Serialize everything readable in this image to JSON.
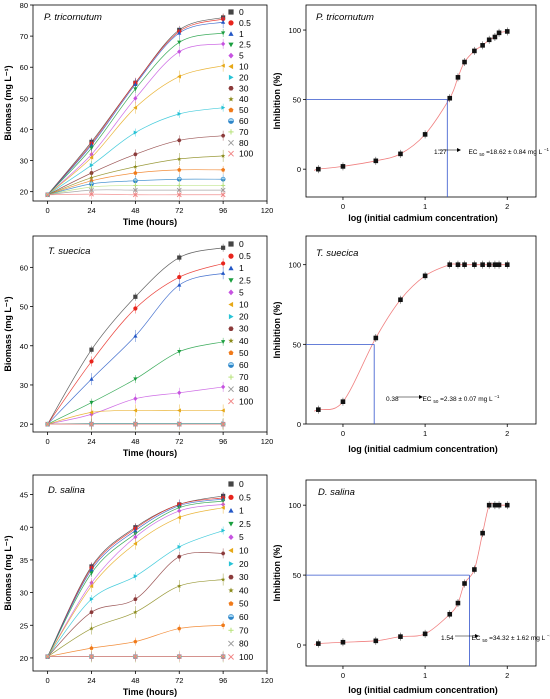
{
  "chart_data": [
    {
      "type": "line",
      "title": "P. tricornutum",
      "xlabel": "Time (hours)",
      "ylabel": "Biomass (mg L⁻¹)",
      "x": [
        0,
        24,
        48,
        72,
        96
      ],
      "xticks": [
        "0",
        "24",
        "48",
        "72",
        "96",
        "120"
      ],
      "xlim": [
        -8,
        120
      ],
      "ylim": [
        17,
        80
      ],
      "yticks": [
        20,
        30,
        40,
        50,
        60,
        70,
        80
      ],
      "legend_position": "right",
      "series": [
        {
          "name": "0",
          "color": "#444444",
          "marker": "square",
          "values": [
            19,
            36,
            55,
            72,
            76
          ]
        },
        {
          "name": "0.5",
          "color": "#e8241c",
          "marker": "circle",
          "values": [
            19,
            35.5,
            55,
            71.5,
            75.5
          ]
        },
        {
          "name": "1",
          "color": "#2357c6",
          "marker": "triangle-up",
          "values": [
            19,
            35,
            54.5,
            71,
            74.5
          ]
        },
        {
          "name": "2.5",
          "color": "#1a9e3f",
          "marker": "triangle-down",
          "values": [
            19,
            34,
            53,
            68,
            71
          ]
        },
        {
          "name": "5",
          "color": "#c653e0",
          "marker": "diamond",
          "values": [
            19,
            32,
            50,
            65,
            67.5
          ]
        },
        {
          "name": "10",
          "color": "#e6a817",
          "marker": "triangle-left",
          "values": [
            19,
            31,
            47,
            57,
            60.5
          ]
        },
        {
          "name": "20",
          "color": "#27c3d6",
          "marker": "triangle-right",
          "values": [
            19,
            28.5,
            39,
            45,
            47
          ]
        },
        {
          "name": "30",
          "color": "#8b3a3a",
          "marker": "hexagon",
          "values": [
            19,
            26,
            32,
            36.5,
            38
          ]
        },
        {
          "name": "40",
          "color": "#8a8a1a",
          "marker": "star",
          "values": [
            19,
            24.5,
            28,
            30.5,
            31.5
          ]
        },
        {
          "name": "50",
          "color": "#f07a1a",
          "marker": "pentagon",
          "values": [
            19,
            23.5,
            26,
            27,
            27
          ]
        },
        {
          "name": "60",
          "color": "#2f86c9",
          "marker": "half-circle",
          "values": [
            19,
            22.5,
            23.5,
            24,
            24
          ]
        },
        {
          "name": "70",
          "color": "#b7e27a",
          "marker": "plus",
          "values": [
            19,
            21.5,
            22,
            22,
            22
          ]
        },
        {
          "name": "80",
          "color": "#999999",
          "marker": "cross",
          "values": [
            19,
            20.5,
            20.5,
            20.5,
            20.5
          ]
        },
        {
          "name": "100",
          "color": "#f08080",
          "marker": "cross",
          "values": [
            19,
            19.2,
            19,
            19,
            19
          ]
        }
      ]
    },
    {
      "type": "scatter",
      "title": "P. tricornutum",
      "xlabel": "log (initial cadmium concentration)",
      "ylabel": "Inhibition (%)",
      "xlim": [
        -0.45,
        2.35
      ],
      "xticks": [
        0,
        1,
        2
      ],
      "ylim": [
        -20,
        118
      ],
      "yticks": [
        0,
        50,
        100
      ],
      "x": [
        -0.3,
        0,
        0.4,
        0.7,
        1.0,
        1.3,
        1.4,
        1.48,
        1.6,
        1.7,
        1.78,
        1.85,
        1.9,
        2.0
      ],
      "values": [
        0,
        2,
        6,
        11,
        25,
        51,
        66,
        77,
        85,
        89,
        93,
        95,
        98,
        99
      ],
      "ec50_log": 1.27,
      "annotation": [
        "1.27",
        "EC",
        "50",
        "=18.62 ± 0.84 mg L",
        "−1"
      ]
    },
    {
      "type": "line",
      "title": "T. suecica",
      "xlabel": "Time (hours)",
      "ylabel": "Biomass (mg L⁻¹)",
      "x": [
        0,
        24,
        48,
        72,
        96
      ],
      "xticks": [
        "0",
        "24",
        "48",
        "72",
        "96",
        "120"
      ],
      "xlim": [
        -8,
        120
      ],
      "ylim": [
        18,
        68
      ],
      "yticks": [
        20,
        30,
        40,
        50,
        60
      ],
      "legend_position": "right",
      "series": [
        {
          "name": "0",
          "color": "#444444",
          "marker": "square",
          "values": [
            20,
            39,
            52.5,
            62.5,
            65
          ]
        },
        {
          "name": "0.5",
          "color": "#e8241c",
          "marker": "circle",
          "values": [
            20,
            36,
            49.5,
            57.5,
            61
          ]
        },
        {
          "name": "1",
          "color": "#2357c6",
          "marker": "triangle-up",
          "values": [
            20,
            31.5,
            42.5,
            55.5,
            58.5
          ]
        },
        {
          "name": "2.5",
          "color": "#1a9e3f",
          "marker": "triangle-down",
          "values": [
            20,
            25.5,
            31.5,
            38.5,
            41
          ]
        },
        {
          "name": "5",
          "color": "#c653e0",
          "marker": "diamond",
          "values": [
            20,
            22.5,
            26.5,
            28,
            29.5
          ]
        },
        {
          "name": "10",
          "color": "#e6a817",
          "marker": "triangle-left",
          "values": [
            20,
            23,
            23.5,
            23.5,
            23.5
          ]
        },
        {
          "name": "20",
          "color": "#27c3d6",
          "marker": "triangle-right",
          "values": [
            20,
            20.2,
            20.2,
            20.2,
            20.2
          ]
        },
        {
          "name": "30",
          "color": "#8b3a3a",
          "marker": "hexagon",
          "values": [
            20,
            20,
            20,
            20,
            20
          ]
        },
        {
          "name": "40",
          "color": "#8a8a1a",
          "marker": "star",
          "values": [
            20,
            20,
            20,
            20,
            20
          ]
        },
        {
          "name": "50",
          "color": "#f07a1a",
          "marker": "pentagon",
          "values": [
            20,
            20,
            20,
            20,
            20
          ]
        },
        {
          "name": "60",
          "color": "#2f86c9",
          "marker": "half-circle",
          "values": [
            20,
            20,
            20,
            20,
            20
          ]
        },
        {
          "name": "70",
          "color": "#b7e27a",
          "marker": "plus",
          "values": [
            20,
            20,
            20,
            20,
            20
          ]
        },
        {
          "name": "80",
          "color": "#999999",
          "marker": "cross",
          "values": [
            20,
            20,
            20,
            20,
            20
          ]
        },
        {
          "name": "100",
          "color": "#f08080",
          "marker": "cross",
          "values": [
            20,
            20,
            20,
            20,
            20
          ]
        }
      ]
    },
    {
      "type": "scatter",
      "title": "T. suecica",
      "xlabel": "log (initial cadmium concentration)",
      "ylabel": "Inhibition (%)",
      "xlim": [
        -0.45,
        2.35
      ],
      "xticks": [
        0,
        1,
        2
      ],
      "ylim": [
        0,
        118
      ],
      "yticks": [
        0,
        50,
        100
      ],
      "x": [
        -0.3,
        0,
        0.4,
        0.7,
        1.0,
        1.3,
        1.4,
        1.48,
        1.6,
        1.7,
        1.78,
        1.85,
        1.9,
        2.0
      ],
      "values": [
        9,
        14,
        54,
        78,
        93,
        100,
        100,
        100,
        100,
        100,
        100,
        100,
        100,
        100
      ],
      "ec50_log": 0.38,
      "annotation": [
        "0.38",
        "EC",
        "50",
        "=2.38 ± 0.07 mg L",
        "−1"
      ]
    },
    {
      "type": "line",
      "title": "D. salina",
      "xlabel": "Time (hours)",
      "ylabel": "Biomass (mg L⁻¹)",
      "x": [
        0,
        24,
        48,
        72,
        96
      ],
      "xticks": [
        "0",
        "24",
        "48",
        "72",
        "96",
        "120"
      ],
      "xlim": [
        -8,
        120
      ],
      "ylim": [
        18,
        48
      ],
      "yticks": [
        20,
        25,
        30,
        35,
        40,
        45
      ],
      "legend_position": "right",
      "series": [
        {
          "name": "0",
          "color": "#444444",
          "marker": "square",
          "values": [
            20.2,
            34,
            40,
            43.5,
            44.8
          ]
        },
        {
          "name": "0.5",
          "color": "#e8241c",
          "marker": "circle",
          "values": [
            20.2,
            33.8,
            39.8,
            43.5,
            44.5
          ]
        },
        {
          "name": "1",
          "color": "#2357c6",
          "marker": "triangle-up",
          "values": [
            20.2,
            33.5,
            39.5,
            43.3,
            44.3
          ]
        },
        {
          "name": "2.5",
          "color": "#1a9e3f",
          "marker": "triangle-down",
          "values": [
            20.2,
            33,
            39,
            43,
            44
          ]
        },
        {
          "name": "5",
          "color": "#c653e0",
          "marker": "diamond",
          "values": [
            20.2,
            31.5,
            38.5,
            42.5,
            43.5
          ]
        },
        {
          "name": "10",
          "color": "#e6a817",
          "marker": "triangle-left",
          "values": [
            20.2,
            31,
            37.5,
            41.5,
            43
          ]
        },
        {
          "name": "20",
          "color": "#27c3d6",
          "marker": "triangle-right",
          "values": [
            20.2,
            29,
            32.5,
            37,
            39.5
          ]
        },
        {
          "name": "30",
          "color": "#8b3a3a",
          "marker": "hexagon",
          "values": [
            20.2,
            27,
            29,
            35.5,
            36
          ]
        },
        {
          "name": "40",
          "color": "#8a8a1a",
          "marker": "star",
          "values": [
            20.2,
            24.5,
            27,
            31,
            32
          ]
        },
        {
          "name": "50",
          "color": "#f07a1a",
          "marker": "pentagon",
          "values": [
            20.2,
            21.5,
            22.5,
            24.5,
            25
          ]
        },
        {
          "name": "60",
          "color": "#2f86c9",
          "marker": "half-circle",
          "values": [
            20.2,
            20.2,
            20.2,
            20.2,
            20.2
          ]
        },
        {
          "name": "70",
          "color": "#b7e27a",
          "marker": "plus",
          "values": [
            20.2,
            20.2,
            20.2,
            20.2,
            20.2
          ]
        },
        {
          "name": "80",
          "color": "#999999",
          "marker": "cross",
          "values": [
            20.2,
            20.2,
            20.2,
            20.2,
            20.2
          ]
        },
        {
          "name": "100",
          "color": "#f08080",
          "marker": "cross",
          "values": [
            20.2,
            20.2,
            20.2,
            20.2,
            20.2
          ]
        }
      ]
    },
    {
      "type": "scatter",
      "title": "D. salina",
      "xlabel": "log (initial cadmium concentration)",
      "ylabel": "Inhibition (%)",
      "xlim": [
        -0.45,
        2.35
      ],
      "xticks": [
        0,
        1,
        2
      ],
      "ylim": [
        -15,
        118
      ],
      "yticks": [
        0,
        50,
        100
      ],
      "x": [
        -0.3,
        0,
        0.4,
        0.7,
        1.0,
        1.3,
        1.4,
        1.48,
        1.6,
        1.7,
        1.78,
        1.85,
        1.9,
        2.0
      ],
      "values": [
        1,
        2,
        3,
        6,
        8,
        22,
        30,
        44,
        54,
        80,
        100,
        100,
        100,
        100
      ],
      "ec50_log": 1.54,
      "annotation": [
        "1.54",
        "EC",
        "50",
        "=34.32 ± 1.62 mg L",
        "−1"
      ]
    }
  ]
}
